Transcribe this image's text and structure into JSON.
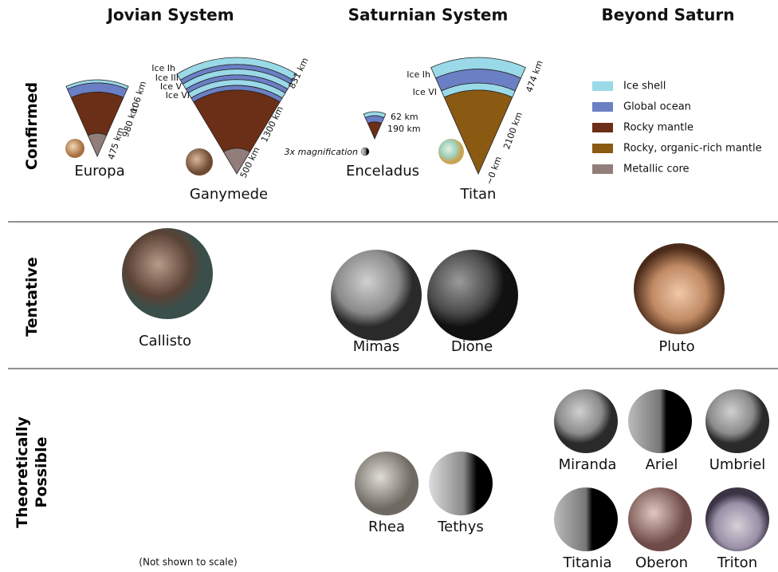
{
  "columns": [
    "Jovian System",
    "Saturnian System",
    "Beyond Saturn"
  ],
  "rows": [
    "Confirmed",
    "Tentative",
    "Theoretically Possible"
  ],
  "legend": [
    {
      "label": "Ice shell",
      "color": "#9ad9e8"
    },
    {
      "label": "Global ocean",
      "color": "#6b7fc4"
    },
    {
      "label": "Rocky mantle",
      "color": "#6b2e16"
    },
    {
      "label": "Rocky, organic-rich mantle",
      "color": "#8a5a12"
    },
    {
      "label": "Metallic core",
      "color": "#917e7b"
    }
  ],
  "confirmed": [
    {
      "name": "Europa",
      "thicknesses": [
        "106 km",
        "980 km",
        "475 km"
      ]
    },
    {
      "name": "Ganymede",
      "ice_phases": [
        "Ice Ih",
        "Ice III",
        "Ice V",
        "Ice VI"
      ],
      "thicknesses": [
        "831 km",
        "1300 km",
        "500 km"
      ]
    },
    {
      "name": "Enceladus",
      "thicknesses": [
        "62 km",
        "190 km"
      ],
      "note": "3x magnification"
    },
    {
      "name": "Titan",
      "ice_phases": [
        "Ice Ih",
        "Ice VI"
      ],
      "thicknesses": [
        "474 km",
        "2100 km",
        "~0 km"
      ]
    }
  ],
  "tentative": [
    "Callisto",
    "Mimas",
    "Dione",
    "Pluto"
  ],
  "theoretical": [
    "Rhea",
    "Tethys",
    "Miranda",
    "Ariel",
    "Umbriel",
    "Titania",
    "Oberon",
    "Triton"
  ],
  "footnote": "(Not shown to scale)"
}
